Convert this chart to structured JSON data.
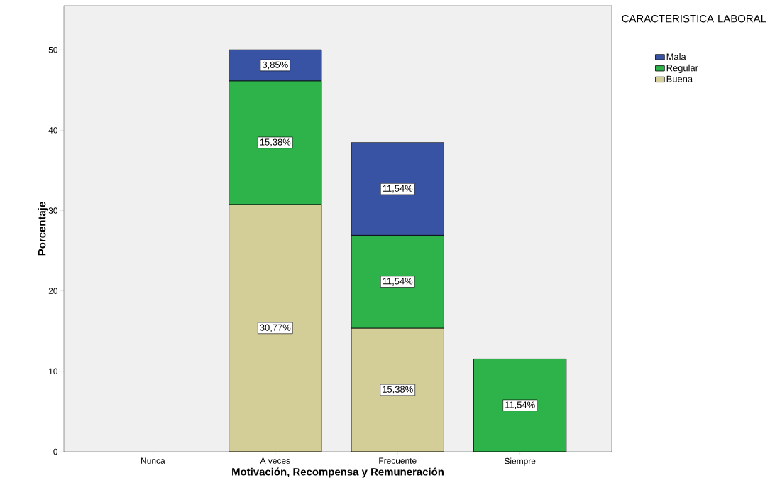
{
  "chart_data": {
    "type": "bar",
    "stacked": true,
    "xlabel": "Motivación, Recompensa y Remuneración",
    "ylabel": "Porcentaje",
    "legend_title": "CARACTERISTICA LABORAL",
    "legend": "top right",
    "categories": [
      "Nunca",
      "A veces",
      "Frecuente",
      "Siempre"
    ],
    "ylim": [
      0,
      55.5
    ],
    "yticks": [
      0,
      10,
      20,
      30,
      40,
      50
    ],
    "series": [
      {
        "name": "Buena",
        "color": "#d3ce97",
        "values": [
          null,
          30.77,
          15.38,
          null
        ],
        "value_labels": [
          null,
          "30,77%",
          "15,38%",
          null
        ]
      },
      {
        "name": "Regular",
        "color": "#2db34a",
        "values": [
          null,
          15.38,
          11.54,
          11.54
        ],
        "value_labels": [
          null,
          "15,38%",
          "11,54%",
          "11,54%"
        ]
      },
      {
        "name": "Mala",
        "color": "#3953a4",
        "values": [
          null,
          3.85,
          11.54,
          null
        ],
        "value_labels": [
          null,
          "3,85%",
          "11,54%",
          null
        ]
      }
    ]
  }
}
